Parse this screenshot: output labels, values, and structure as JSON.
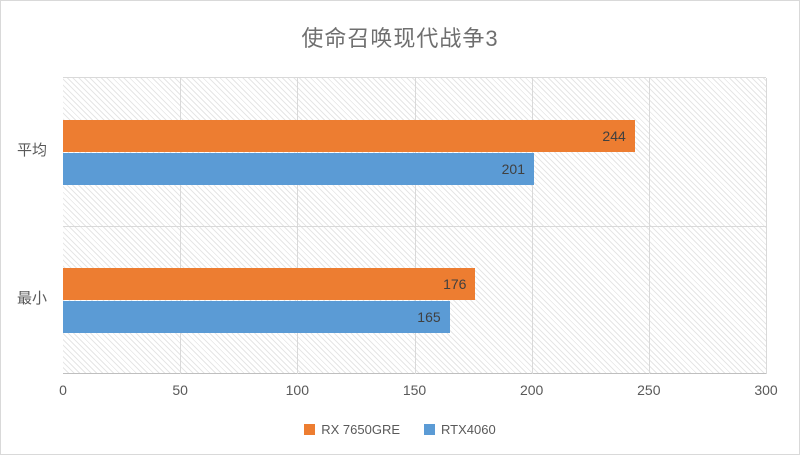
{
  "title": "使命召唤现代战争3",
  "chart_data": {
    "type": "bar",
    "orientation": "horizontal",
    "title": "使命召唤现代战争3",
    "categories": [
      "平均",
      "最小"
    ],
    "series": [
      {
        "name": "RX 7650GRE",
        "color": "#ED7D31",
        "values": [
          244,
          176
        ]
      },
      {
        "name": "RTX4060",
        "color": "#5B9BD5",
        "values": [
          201,
          165
        ]
      }
    ],
    "x_ticks": [
      0,
      50,
      100,
      150,
      200,
      250,
      300
    ],
    "xlim": [
      0,
      300
    ],
    "grid": true,
    "plot_background": "diagonal-hatch",
    "legend_position": "bottom",
    "data_labels": "inside-end"
  },
  "colors": {
    "series_1": "#ED7D31",
    "series_2": "#5B9BD5",
    "gridline": "#d9d9d9",
    "axis_line": "#bfbfbf",
    "title_text": "#6f6f6f",
    "axis_text": "#595959",
    "data_label_text": "#404040"
  }
}
